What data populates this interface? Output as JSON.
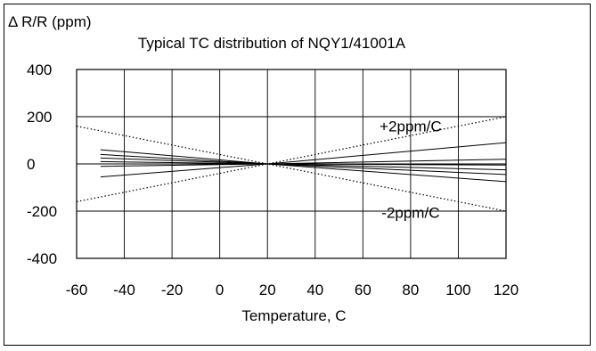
{
  "chart_data": {
    "type": "line",
    "ylabel": "Δ R/R (ppm)",
    "title": "Typical TC distribution of NQY1/41001A",
    "xlabel": "Temperature, C",
    "xlim": [
      -60,
      120
    ],
    "ylim": [
      -400,
      400
    ],
    "x_ticks": [
      -60,
      -40,
      -20,
      0,
      20,
      40,
      60,
      80,
      100,
      120
    ],
    "y_ticks": [
      400,
      200,
      0,
      -200,
      -400
    ],
    "grid": true,
    "series": [
      {
        "name": "+2ppm/C",
        "style": "dotted",
        "x": [
          -60,
          120
        ],
        "y": [
          -160,
          200
        ]
      },
      {
        "name": "-2ppm/C",
        "style": "dotted",
        "x": [
          -60,
          120
        ],
        "y": [
          160,
          -200
        ]
      },
      {
        "style": "solid",
        "x": [
          -50,
          20,
          120
        ],
        "y": [
          -55,
          0,
          90
        ]
      },
      {
        "style": "solid",
        "x": [
          -50,
          20,
          120
        ],
        "y": [
          -10,
          0,
          20
        ]
      },
      {
        "style": "solid",
        "x": [
          -50,
          20,
          120
        ],
        "y": [
          10,
          0,
          -5
        ]
      },
      {
        "style": "solid",
        "x": [
          -50,
          20,
          120
        ],
        "y": [
          25,
          0,
          -25
        ]
      },
      {
        "style": "solid",
        "x": [
          -50,
          20,
          120
        ],
        "y": [
          40,
          0,
          -45
        ]
      },
      {
        "style": "solid",
        "x": [
          -50,
          20,
          120
        ],
        "y": [
          60,
          0,
          -75
        ]
      }
    ],
    "annotations": [
      {
        "text": "+2ppm/C",
        "x": 80,
        "y": 160
      },
      {
        "text": "-2ppm/C",
        "x": 80,
        "y": -205
      }
    ]
  }
}
